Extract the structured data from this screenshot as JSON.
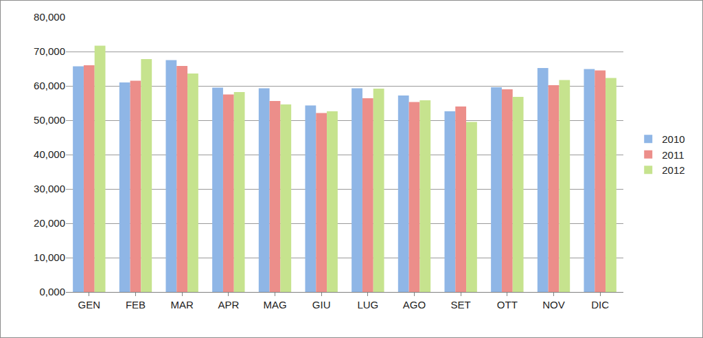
{
  "chart_data": {
    "type": "bar",
    "categories": [
      "GEN",
      "FEB",
      "MAR",
      "APR",
      "MAG",
      "GIU",
      "LUG",
      "AGO",
      "SET",
      "OTT",
      "NOV",
      "DIC"
    ],
    "series": [
      {
        "name": "2010",
        "color": "#8fb6e6",
        "values": [
          65700,
          61000,
          67500,
          59500,
          59300,
          54300,
          59300,
          57200,
          52600,
          59600,
          65200,
          64900
        ]
      },
      {
        "name": "2011",
        "color": "#ec8e8a",
        "values": [
          66000,
          61500,
          65800,
          57500,
          55600,
          52100,
          56400,
          55300,
          54000,
          59000,
          60200,
          64500
        ]
      },
      {
        "name": "2012",
        "color": "#c6e38e",
        "values": [
          71700,
          67800,
          63600,
          58200,
          54600,
          52600,
          59200,
          55800,
          49500,
          56800,
          61700,
          62300
        ]
      }
    ],
    "ylim": [
      0,
      80000
    ],
    "yticks": [
      {
        "value": 0,
        "label": "0,000"
      },
      {
        "value": 10000,
        "label": "10,000"
      },
      {
        "value": 20000,
        "label": "20,000"
      },
      {
        "value": 30000,
        "label": "30,000"
      },
      {
        "value": 40000,
        "label": "40,000"
      },
      {
        "value": 50000,
        "label": "50,000"
      },
      {
        "value": 60000,
        "label": "60,000"
      },
      {
        "value": 70000,
        "label": "70,000"
      },
      {
        "value": 80000,
        "label": "80,000"
      }
    ],
    "grid": true,
    "legend": "right"
  }
}
